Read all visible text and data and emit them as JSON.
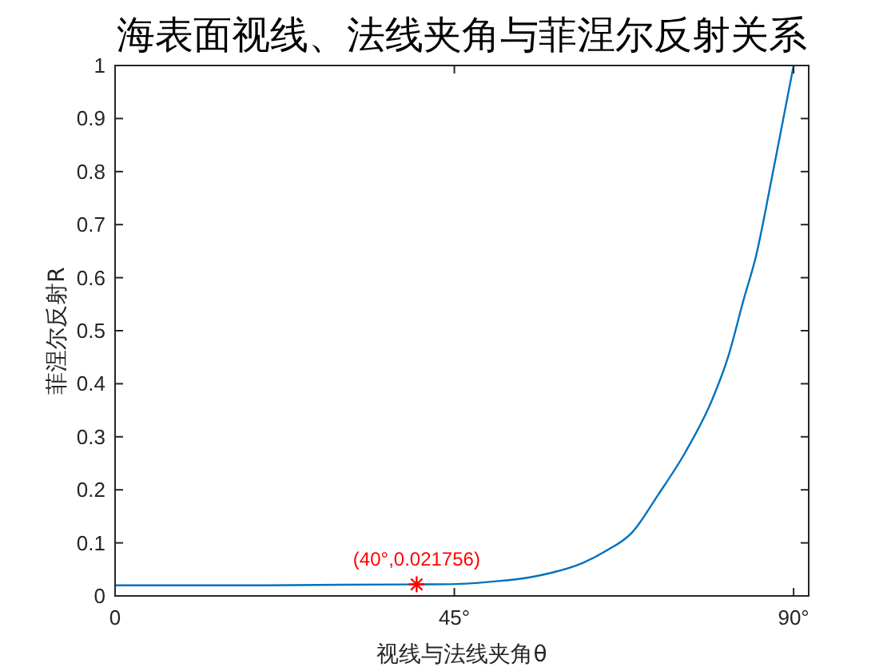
{
  "chart_data": {
    "type": "line",
    "title": "海表面视线、法线夹角与菲涅尔反射关系",
    "xlabel": "视线与法线夹角θ",
    "ylabel": "菲涅尔反射R",
    "xlim": [
      0,
      92
    ],
    "ylim": [
      0,
      1
    ],
    "xticks": [
      {
        "value": 0,
        "label": "0"
      },
      {
        "value": 45,
        "label": "45°"
      },
      {
        "value": 90,
        "label": "90°"
      }
    ],
    "yticks": [
      0,
      0.1,
      0.2,
      0.3,
      0.4,
      0.5,
      0.6,
      0.7,
      0.8,
      0.9,
      1
    ],
    "grid": false,
    "series": [
      {
        "color": "#0072bd",
        "x": [
          0,
          10,
          20,
          30,
          40,
          44,
          50,
          55,
          58,
          62,
          65,
          68.6,
          72,
          75.6,
          79.2,
          81.3,
          83.4,
          85,
          87,
          88.5,
          90
        ],
        "values": [
          0.02,
          0.02,
          0.02,
          0.021,
          0.021756,
          0.022,
          0.027,
          0.035,
          0.044,
          0.062,
          0.084,
          0.12,
          0.19,
          0.27,
          0.37,
          0.45,
          0.56,
          0.64,
          0.78,
          0.89,
          1
        ]
      },
      {
        "type": "scatter",
        "marker": "cross",
        "color": "#ff0000",
        "x": [
          40
        ],
        "values": [
          0.021756
        ]
      }
    ],
    "annotations": [
      {
        "text": "(40°,0.021756)",
        "x": 40,
        "y": 0.021756
      }
    ]
  }
}
